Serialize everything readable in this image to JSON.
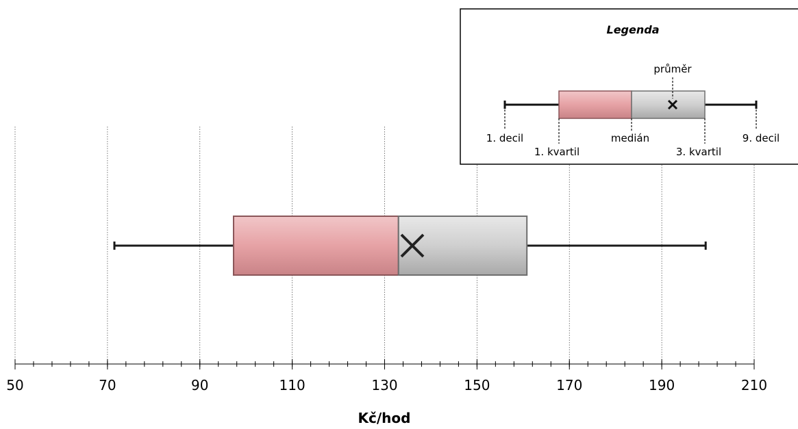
{
  "chart_data": {
    "type": "boxplot",
    "orientation": "horizontal",
    "xlabel": "Kč/hod",
    "xlim": [
      50,
      210
    ],
    "major_ticks": [
      50,
      70,
      90,
      110,
      130,
      150,
      170,
      190,
      210
    ],
    "minor_tick_step": 4,
    "grid": "vertical dotted at major ticks",
    "box": {
      "decile_1": 71.5,
      "quartile_1": 97.3,
      "median": 133,
      "quartile_3": 160.8,
      "decile_9": 199.5,
      "mean": 136
    },
    "colors": {
      "lower_box": "#e6a2a5",
      "upper_box": "#cfcfcf",
      "whisker": "#1a1a1a"
    },
    "legend": {
      "title": "Legenda",
      "placement": "top-right",
      "labels": {
        "mean": "průměr",
        "decile_1": "1. decil",
        "quartile_1": "1. kvartil",
        "median": "medián",
        "quartile_3": "3. kvartil",
        "decile_9": "9. decil"
      }
    }
  }
}
